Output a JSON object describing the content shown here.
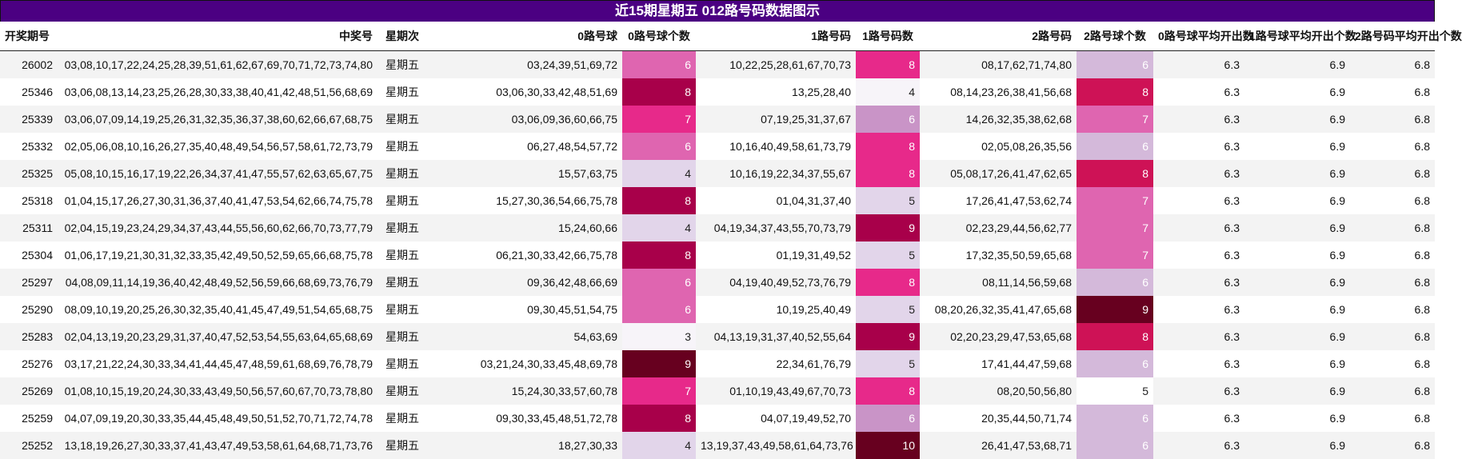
{
  "title": "近15期星期五 012路号码数据图示",
  "columns": [
    "开奖期号",
    "中奖号",
    "星期次",
    "0路号球",
    "0路号球个数",
    "1路号码",
    "1路号码数",
    "2路号码",
    "2路号球个数",
    "0路号球平均开出数",
    "1路号球平均开出个数",
    "2路号码平均开出个数"
  ],
  "chart_data": {
    "type": "table",
    "title": "近15期星期五 012路号码数据图示",
    "heat_colors": {
      "3": "#f7f4f9",
      "4": "#e2d5ea",
      "5": "#e2d5ea",
      "6c0": "#df65b0",
      "6": "#d4b9da",
      "6b": "#c994c7",
      "7": "#e7298a",
      "7b": "#df65b0",
      "8": "#ce1256",
      "8a": "#e7298a",
      "8c": "#980043",
      "9": "#980043",
      "9d": "#67001f",
      "10": "#67001f"
    },
    "rows": [
      {
        "issue": "26002",
        "numbers": "03,08,10,17,22,24,25,28,39,51,61,62,67,69,70,71,72,73,74,80",
        "weekday": "星期五",
        "r0": "03,24,39,51,69,72",
        "c0": "6",
        "r1": "10,22,25,28,61,67,70,73",
        "c1": "8",
        "r2": "08,17,62,71,74,80",
        "c2": "6",
        "a0": "6.3",
        "a1": "6.9",
        "a2": "6.8",
        "h0": "#df65b0",
        "h1": "#e7298a",
        "h2": "#d4b9da"
      },
      {
        "issue": "25346",
        "numbers": "03,06,08,13,14,23,25,26,28,30,33,38,40,41,42,48,51,56,68,69",
        "weekday": "星期五",
        "r0": "03,06,30,33,42,48,51,69",
        "c0": "8",
        "r1": "13,25,28,40",
        "c1": "4",
        "r2": "08,14,23,26,38,41,56,68",
        "c2": "8",
        "a0": "6.3",
        "a1": "6.9",
        "a2": "6.8",
        "h0": "#a8004a",
        "h1": "#f7f4f9",
        "h2": "#ce1256"
      },
      {
        "issue": "25339",
        "numbers": "03,06,07,09,14,19,25,26,31,32,35,36,37,38,60,62,66,67,68,75",
        "weekday": "星期五",
        "r0": "03,06,09,36,60,66,75",
        "c0": "7",
        "r1": "07,19,25,31,37,67",
        "c1": "6",
        "r2": "14,26,32,35,38,62,68",
        "c2": "7",
        "a0": "6.3",
        "a1": "6.9",
        "a2": "6.8",
        "h0": "#e7298a",
        "h1": "#c994c7",
        "h2": "#df65b0"
      },
      {
        "issue": "25332",
        "numbers": "02,05,06,08,10,16,26,27,35,40,48,49,54,56,57,58,61,72,73,79",
        "weekday": "星期五",
        "r0": "06,27,48,54,57,72",
        "c0": "6",
        "r1": "10,16,40,49,58,61,73,79",
        "c1": "8",
        "r2": "02,05,08,26,35,56",
        "c2": "6",
        "a0": "6.3",
        "a1": "6.9",
        "a2": "6.8",
        "h0": "#df65b0",
        "h1": "#e7298a",
        "h2": "#d4b9da"
      },
      {
        "issue": "25325",
        "numbers": "05,08,10,15,16,17,19,22,26,34,37,41,47,55,57,62,63,65,67,75",
        "weekday": "星期五",
        "r0": "15,57,63,75",
        "c0": "4",
        "r1": "10,16,19,22,34,37,55,67",
        "c1": "8",
        "r2": "05,08,17,26,41,47,62,65",
        "c2": "8",
        "a0": "6.3",
        "a1": "6.9",
        "a2": "6.8",
        "h0": "#e2d5ea",
        "h1": "#e7298a",
        "h2": "#ce1256"
      },
      {
        "issue": "25318",
        "numbers": "01,04,15,17,26,27,30,31,36,37,40,41,47,53,54,62,66,74,75,78",
        "weekday": "星期五",
        "r0": "15,27,30,36,54,66,75,78",
        "c0": "8",
        "r1": "01,04,31,37,40",
        "c1": "5",
        "r2": "17,26,41,47,53,62,74",
        "c2": "7",
        "a0": "6.3",
        "a1": "6.9",
        "a2": "6.8",
        "h0": "#a8004a",
        "h1": "#e2d5ea",
        "h2": "#df65b0"
      },
      {
        "issue": "25311",
        "numbers": "02,04,15,19,23,24,29,34,37,43,44,55,56,60,62,66,70,73,77,79",
        "weekday": "星期五",
        "r0": "15,24,60,66",
        "c0": "4",
        "r1": "04,19,34,37,43,55,70,73,79",
        "c1": "9",
        "r2": "02,23,29,44,56,62,77",
        "c2": "7",
        "a0": "6.3",
        "a1": "6.9",
        "a2": "6.8",
        "h0": "#e2d5ea",
        "h1": "#a8004a",
        "h2": "#df65b0"
      },
      {
        "issue": "25304",
        "numbers": "01,06,17,19,21,30,31,32,33,35,42,49,50,52,59,65,66,68,75,78",
        "weekday": "星期五",
        "r0": "06,21,30,33,42,66,75,78",
        "c0": "8",
        "r1": "01,19,31,49,52",
        "c1": "5",
        "r2": "17,32,35,50,59,65,68",
        "c2": "7",
        "a0": "6.3",
        "a1": "6.9",
        "a2": "6.8",
        "h0": "#a8004a",
        "h1": "#e2d5ea",
        "h2": "#df65b0"
      },
      {
        "issue": "25297",
        "numbers": "04,08,09,11,14,19,36,40,42,48,49,52,56,59,66,68,69,73,76,79",
        "weekday": "星期五",
        "r0": "09,36,42,48,66,69",
        "c0": "6",
        "r1": "04,19,40,49,52,73,76,79",
        "c1": "8",
        "r2": "08,11,14,56,59,68",
        "c2": "6",
        "a0": "6.3",
        "a1": "6.9",
        "a2": "6.8",
        "h0": "#df65b0",
        "h1": "#e7298a",
        "h2": "#d4b9da"
      },
      {
        "issue": "25290",
        "numbers": "08,09,10,19,20,25,26,30,32,35,40,41,45,47,49,51,54,65,68,75",
        "weekday": "星期五",
        "r0": "09,30,45,51,54,75",
        "c0": "6",
        "r1": "10,19,25,40,49",
        "c1": "5",
        "r2": "08,20,26,32,35,41,47,65,68",
        "c2": "9",
        "a0": "6.3",
        "a1": "6.9",
        "a2": "6.8",
        "h0": "#df65b0",
        "h1": "#e2d5ea",
        "h2": "#67001f"
      },
      {
        "issue": "25283",
        "numbers": "02,04,13,19,20,23,29,31,37,40,47,52,53,54,55,63,64,65,68,69",
        "weekday": "星期五",
        "r0": "54,63,69",
        "c0": "3",
        "r1": "04,13,19,31,37,40,52,55,64",
        "c1": "9",
        "r2": "02,20,23,29,47,53,65,68",
        "c2": "8",
        "a0": "6.3",
        "a1": "6.9",
        "a2": "6.8",
        "h0": "#f7f4f9",
        "h1": "#a8004a",
        "h2": "#ce1256"
      },
      {
        "issue": "25276",
        "numbers": "03,17,21,22,24,30,33,34,41,44,45,47,48,59,61,68,69,76,78,79",
        "weekday": "星期五",
        "r0": "03,21,24,30,33,45,48,69,78",
        "c0": "9",
        "r1": "22,34,61,76,79",
        "c1": "5",
        "r2": "17,41,44,47,59,68",
        "c2": "6",
        "a0": "6.3",
        "a1": "6.9",
        "a2": "6.8",
        "h0": "#67001f",
        "h1": "#e2d5ea",
        "h2": "#d4b9da"
      },
      {
        "issue": "25269",
        "numbers": "01,08,10,15,19,20,24,30,33,43,49,50,56,57,60,67,70,73,78,80",
        "weekday": "星期五",
        "r0": "15,24,30,33,57,60,78",
        "c0": "7",
        "r1": "01,10,19,43,49,67,70,73",
        "c1": "8",
        "r2": "08,20,50,56,80",
        "c2": "5",
        "a0": "6.3",
        "a1": "6.9",
        "a2": "6.8",
        "h0": "#e7298a",
        "h1": "#e7298a",
        "h2": "#ffffff"
      },
      {
        "issue": "25259",
        "numbers": "04,07,09,19,20,30,33,35,44,45,48,49,50,51,52,70,71,72,74,78",
        "weekday": "星期五",
        "r0": "09,30,33,45,48,51,72,78",
        "c0": "8",
        "r1": "04,07,19,49,52,70",
        "c1": "6",
        "r2": "20,35,44,50,71,74",
        "c2": "6",
        "a0": "6.3",
        "a1": "6.9",
        "a2": "6.8",
        "h0": "#a8004a",
        "h1": "#c994c7",
        "h2": "#d4b9da"
      },
      {
        "issue": "25252",
        "numbers": "13,18,19,26,27,30,33,37,41,43,47,49,53,58,61,64,68,71,73,76",
        "weekday": "星期五",
        "r0": "18,27,30,33",
        "c0": "4",
        "r1": "13,19,37,43,49,58,61,64,73,76",
        "c1": "10",
        "r2": "26,41,47,53,68,71",
        "c2": "6",
        "a0": "6.3",
        "a1": "6.9",
        "a2": "6.8",
        "h0": "#e2d5ea",
        "h1": "#67001f",
        "h2": "#d4b9da"
      }
    ]
  }
}
